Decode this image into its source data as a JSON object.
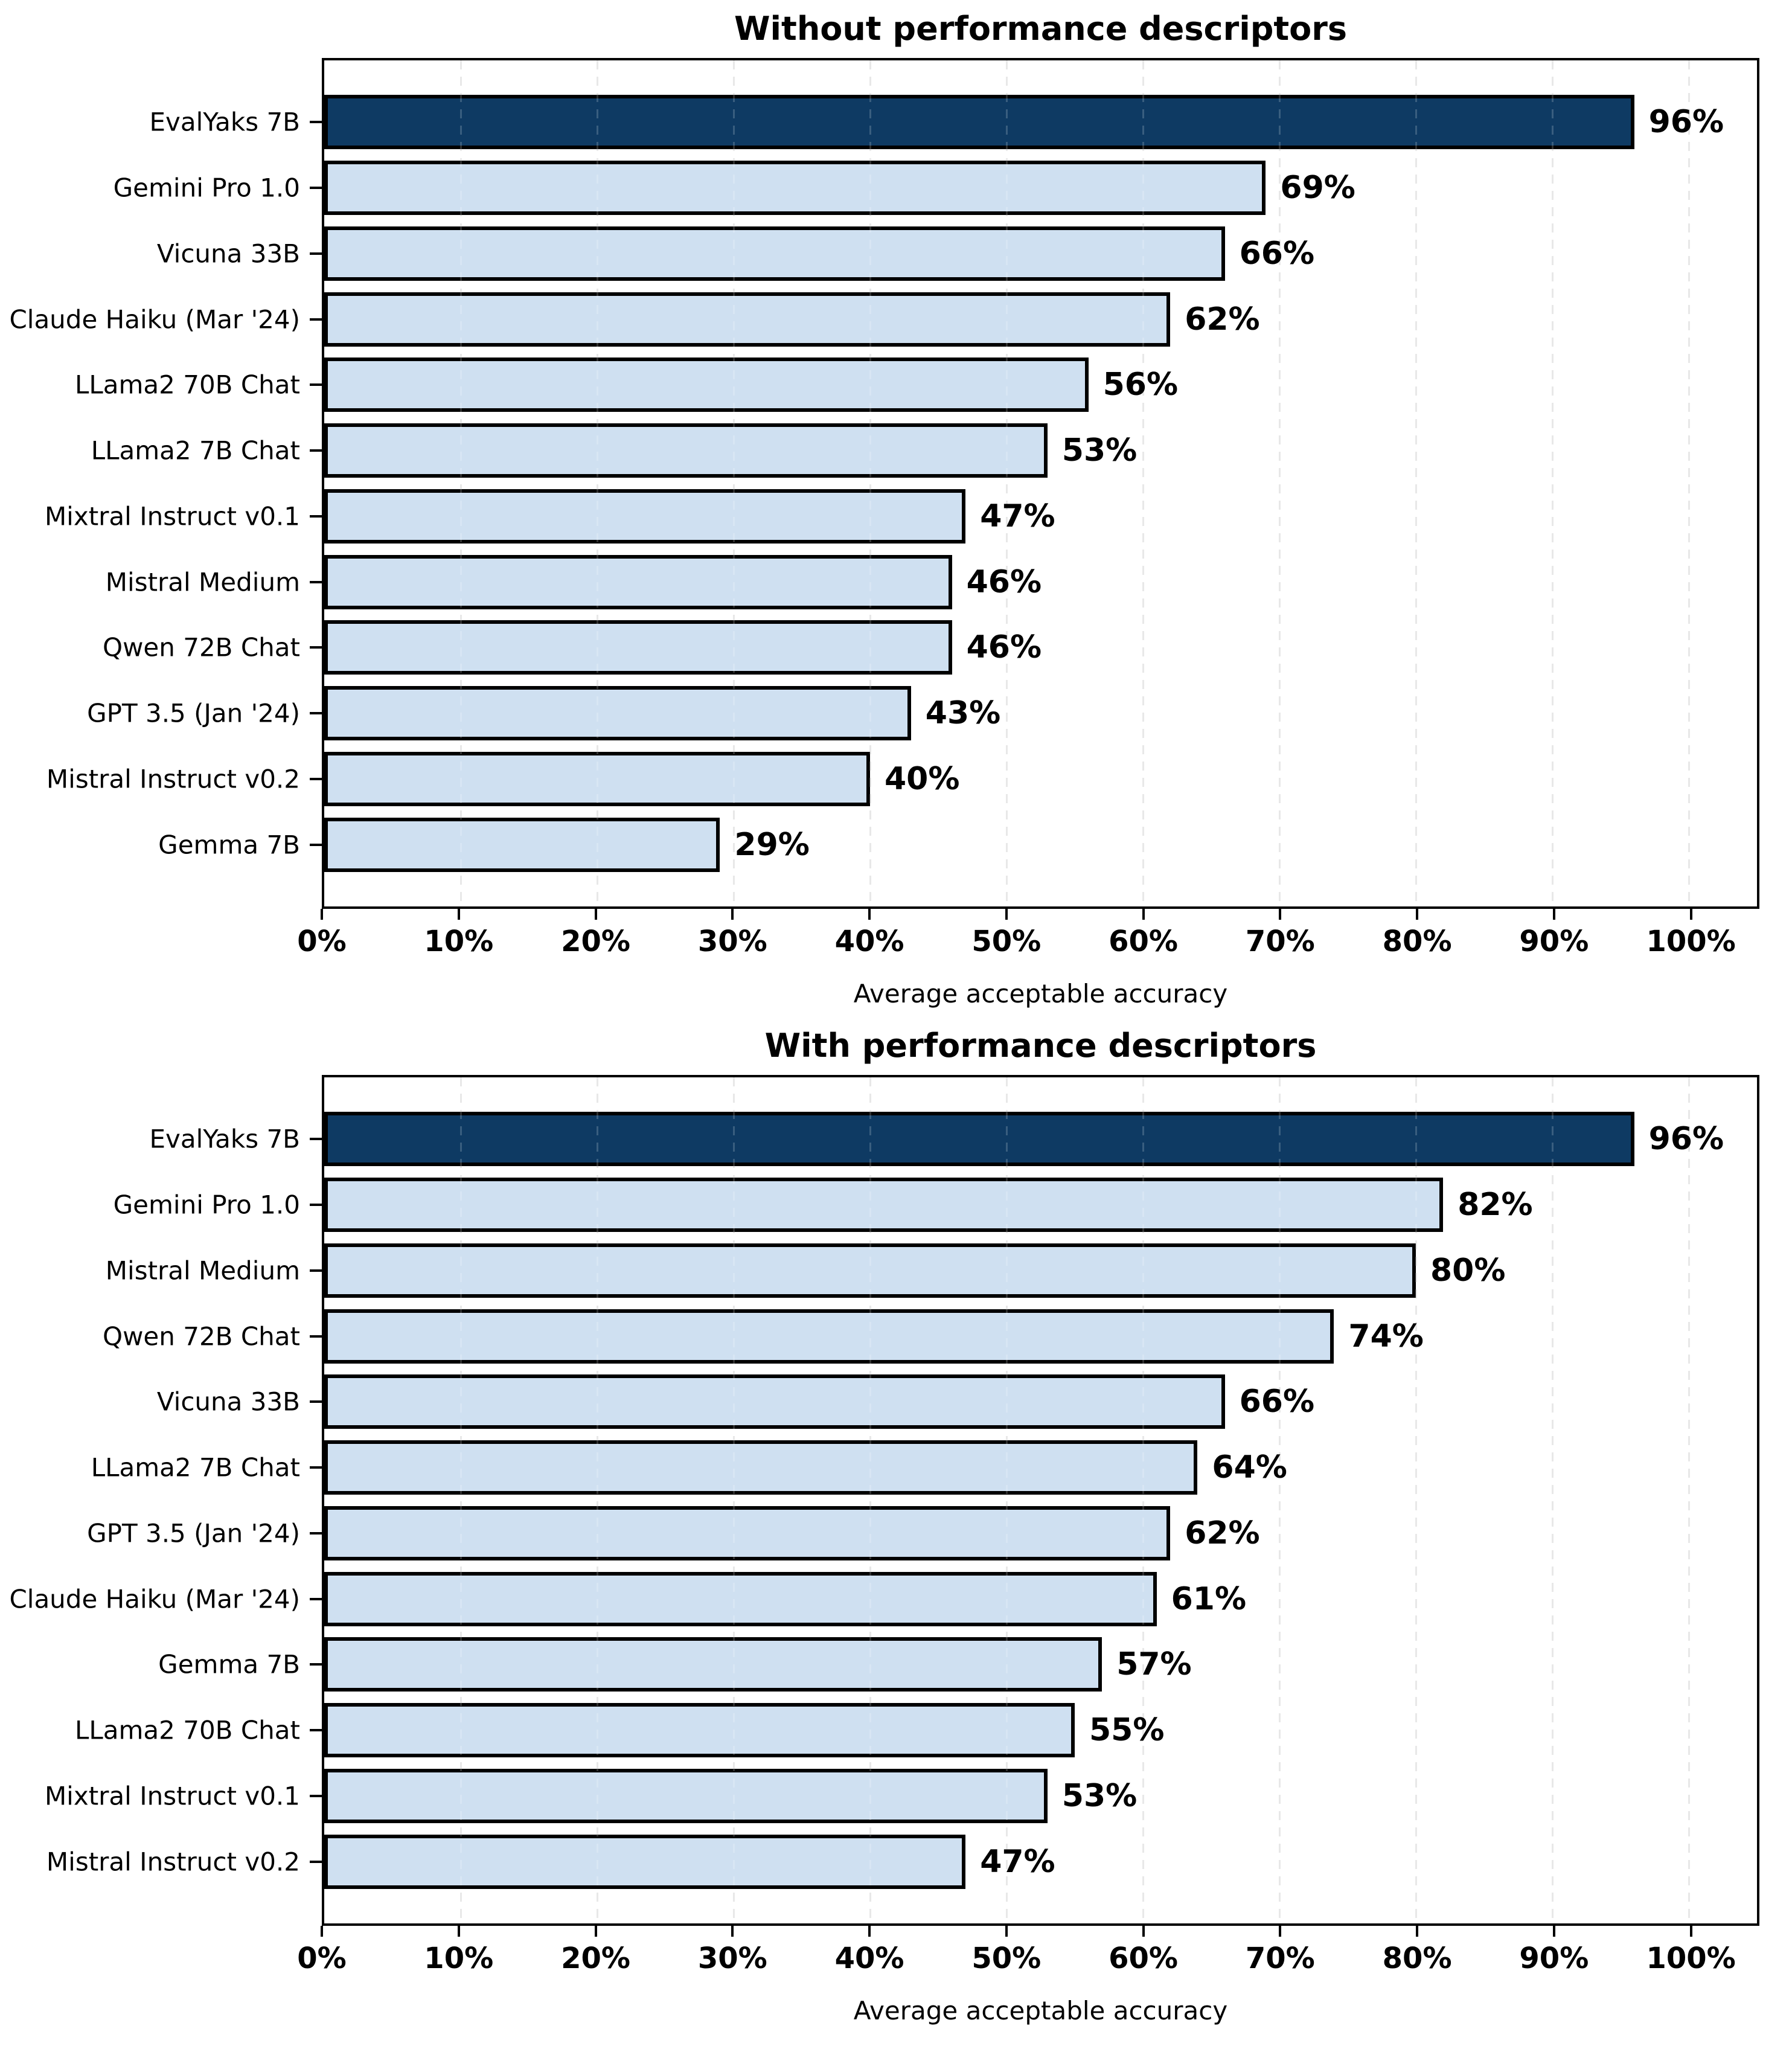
{
  "colors": {
    "highlight_bar": "#0e3a63",
    "bar_fill": "#cfe0f1",
    "bar_border": "#000000",
    "grid_line": "#e3e3e3",
    "text": "#000000",
    "background": "#ffffff"
  },
  "chart_data": [
    {
      "type": "bar",
      "orientation": "horizontal",
      "title": "Without performance descriptors",
      "xlabel": "Average acceptable accuracy",
      "xlim": [
        0,
        105
      ],
      "xticks": [
        0,
        10,
        20,
        30,
        40,
        50,
        60,
        70,
        80,
        90,
        100
      ],
      "xtick_labels": [
        "0%",
        "10%",
        "20%",
        "30%",
        "40%",
        "50%",
        "60%",
        "70%",
        "80%",
        "90%",
        "100%"
      ],
      "grid": "vertical-dashed",
      "legend": "none",
      "categories": [
        "EvalYaks 7B",
        "Gemini Pro 1.0",
        "Vicuna 33B",
        "Claude Haiku (Mar '24)",
        "LLama2 70B Chat",
        "LLama2 7B Chat",
        "Mixtral Instruct v0.1",
        "Mistral Medium",
        "Qwen 72B Chat",
        "GPT 3.5 (Jan '24)",
        "Mistral Instruct v0.2",
        "Gemma 7B"
      ],
      "values": [
        96,
        69,
        66,
        62,
        56,
        53,
        47,
        46,
        46,
        43,
        40,
        29
      ],
      "value_labels": [
        "96%",
        "69%",
        "66%",
        "62%",
        "56%",
        "53%",
        "47%",
        "46%",
        "46%",
        "43%",
        "40%",
        "29%"
      ],
      "highlight_index": 0
    },
    {
      "type": "bar",
      "orientation": "horizontal",
      "title": "With performance descriptors",
      "xlabel": "Average acceptable accuracy",
      "xlim": [
        0,
        105
      ],
      "xticks": [
        0,
        10,
        20,
        30,
        40,
        50,
        60,
        70,
        80,
        90,
        100
      ],
      "xtick_labels": [
        "0%",
        "10%",
        "20%",
        "30%",
        "40%",
        "50%",
        "60%",
        "70%",
        "80%",
        "90%",
        "100%"
      ],
      "grid": "vertical-dashed",
      "legend": "none",
      "categories": [
        "EvalYaks 7B",
        "Gemini Pro 1.0",
        "Mistral Medium",
        "Qwen 72B Chat",
        "Vicuna 33B",
        "LLama2 7B Chat",
        "GPT 3.5 (Jan '24)",
        "Claude Haiku (Mar '24)",
        "Gemma 7B",
        "LLama2 70B Chat",
        "Mixtral Instruct v0.1",
        "Mistral Instruct v0.2"
      ],
      "values": [
        96,
        82,
        80,
        74,
        66,
        64,
        62,
        61,
        57,
        55,
        53,
        47
      ],
      "value_labels": [
        "96%",
        "82%",
        "80%",
        "74%",
        "66%",
        "64%",
        "62%",
        "61%",
        "57%",
        "55%",
        "53%",
        "47%"
      ],
      "highlight_index": 0
    }
  ]
}
